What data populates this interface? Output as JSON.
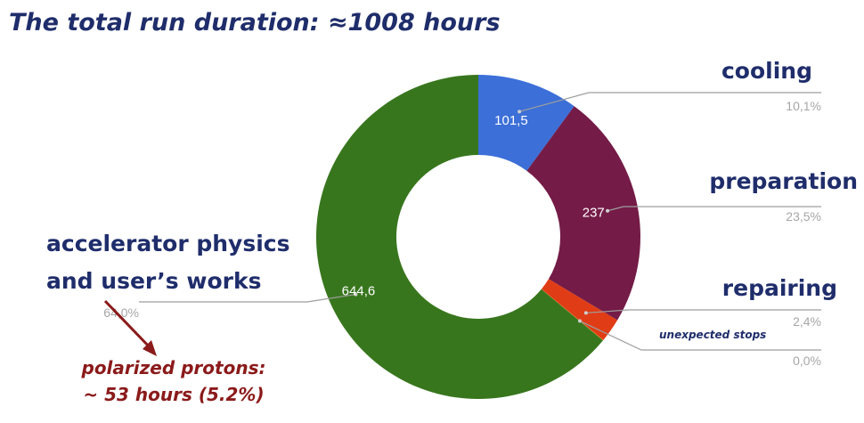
{
  "title": "The total run duration: ≈1008 hours",
  "chart_data": {
    "type": "pie",
    "donut": true,
    "slices": [
      {
        "label": "cooling",
        "value": 101.5,
        "value_label": "101,5",
        "percent_label": "10,1%",
        "color": "#3c6fd8"
      },
      {
        "label": "preparation",
        "value": 237,
        "value_label": "237",
        "percent_label": "23,5%",
        "color": "#741b47"
      },
      {
        "label": "repairing",
        "value": 24.2,
        "value_label": "",
        "percent_label": "2,4%",
        "color": "#e03c16"
      },
      {
        "label": "unexpected stops",
        "value": 0.4,
        "value_label": "",
        "percent_label": "0,0%",
        "color": "#f2a200"
      },
      {
        "label": "accelerator physics\nand user’s works",
        "value": 644.6,
        "value_label": "644,6",
        "percent_label": "64,0%",
        "color": "#38761d"
      }
    ],
    "annotation": [
      "polarized protons:",
      "~ 53 hours (5.2%)"
    ]
  }
}
